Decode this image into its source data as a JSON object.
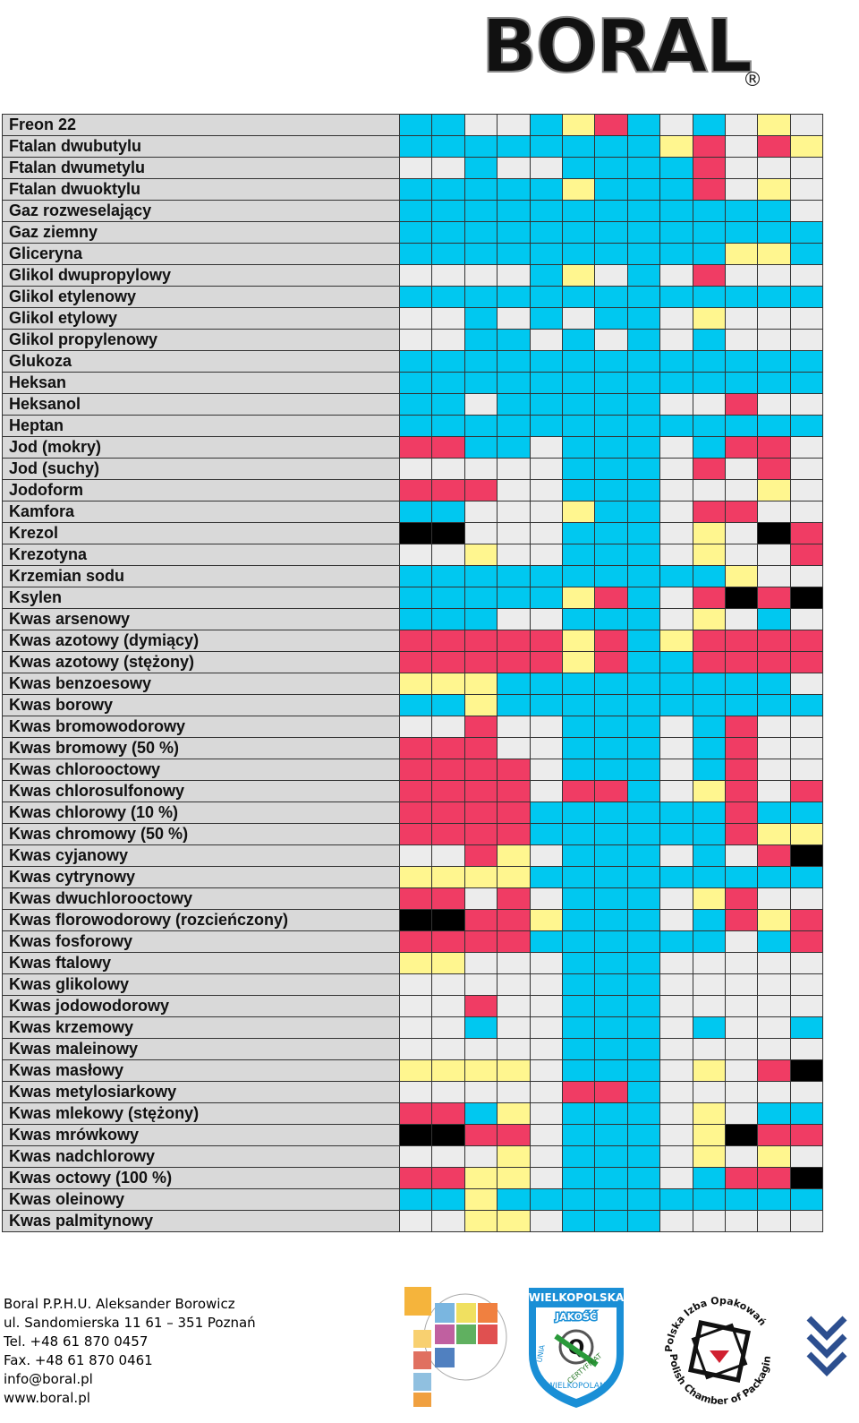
{
  "brand": {
    "logo_text": "BORAL",
    "registered_mark": "®"
  },
  "colors": {
    "C": "#00c8f0",
    "G": "#ececec",
    "Y": "#fff68f",
    "R": "#f03c64",
    "K": "#000000"
  },
  "rows": [
    {
      "name": "Freon 22",
      "cells": "CCGGCYRCGCGYG"
    },
    {
      "name": "Ftalan dwubutylu",
      "cells": "CCCCCCCCYRGRY"
    },
    {
      "name": "Ftalan dwumetylu",
      "cells": "GGCGGCCCCRGGG"
    },
    {
      "name": "Ftalan dwuoktylu",
      "cells": "CCCCCYCCCRGYG"
    },
    {
      "name": "Gaz rozweselający",
      "cells": "CCCCCCCCCCCCG"
    },
    {
      "name": "Gaz ziemny",
      "cells": "CCCCCCCCCCCCC"
    },
    {
      "name": "Gliceryna",
      "cells": "CCCCCCCCCCYYC"
    },
    {
      "name": "Glikol dwupropylowy",
      "cells": "GGGGCYGCGRGGG"
    },
    {
      "name": "Glikol etylenowy",
      "cells": "CCCCCCCCCCCCC"
    },
    {
      "name": "Glikol etylowy",
      "cells": "GGCGCGCCGYGGG"
    },
    {
      "name": "Glikol propylenowy",
      "cells": "GGCCGCGCGCGGG"
    },
    {
      "name": "Glukoza",
      "cells": "CCCCCCCCCCCCC"
    },
    {
      "name": "Heksan",
      "cells": "CCCCCCCCCCCCC"
    },
    {
      "name": "Heksanol",
      "cells": "CCGCCCCCGGRGG"
    },
    {
      "name": "Heptan",
      "cells": "CCCCCCCCCCCCC"
    },
    {
      "name": "Jod (mokry)",
      "cells": "RRCCGCCCGCRRG"
    },
    {
      "name": "Jod (suchy)",
      "cells": "GGGGGCCCGRGRG"
    },
    {
      "name": "Jodoform",
      "cells": "RRRGGCCCGGGYG"
    },
    {
      "name": "Kamfora",
      "cells": "CCGGGYCCGRRGG"
    },
    {
      "name": "Krezol",
      "cells": "KKGGGCCCGYGKR"
    },
    {
      "name": "Krezotyna",
      "cells": "GGYGGCCCGYGGR"
    },
    {
      "name": "Krzemian sodu",
      "cells": "CCCCCCCCCCYGG"
    },
    {
      "name": "Ksylen",
      "cells": "CCCCCYRCGRKRK"
    },
    {
      "name": "Kwas arsenowy",
      "cells": "CCCGGCCCGYGCG"
    },
    {
      "name": "Kwas azotowy (dymiący)",
      "cells": "RRRRRYRCYRRRR"
    },
    {
      "name": "Kwas azotowy (stężony)",
      "cells": "RRRRRYRCCRRRR"
    },
    {
      "name": "Kwas benzoesowy",
      "cells": "YYYCCCCCCCCCG"
    },
    {
      "name": "Kwas borowy",
      "cells": "CCYCCCCCCCCCC"
    },
    {
      "name": "Kwas bromowodorowy",
      "cells": "GGRGGCCCGCRGG"
    },
    {
      "name": "Kwas bromowy (50 %)",
      "cells": "RRRGGCCCGCRGG"
    },
    {
      "name": "Kwas chlorooctowy",
      "cells": "RRRRGCCCGCRGG"
    },
    {
      "name": "Kwas chlorosulfonowy",
      "cells": "RRRRGRRCGYRGR"
    },
    {
      "name": "Kwas chlorowy (10 %)",
      "cells": "RRRRCCCCCCRCC"
    },
    {
      "name": "Kwas chromowy (50 %)",
      "cells": "RRRRCCCCCCRYY"
    },
    {
      "name": "Kwas cyjanowy",
      "cells": "GGRYGCCCGCGRK"
    },
    {
      "name": "Kwas cytrynowy",
      "cells": "YYYYCCCCCCCCC"
    },
    {
      "name": "Kwas dwuchlorooctowy",
      "cells": "RRGRGCCCGYRGG"
    },
    {
      "name": "Kwas florowodorowy (rozcieńczony)",
      "cells": "KKRRYCCCGCRYR"
    },
    {
      "name": "Kwas fosforowy",
      "cells": "RRRRCCCCCCGCR"
    },
    {
      "name": "Kwas ftalowy",
      "cells": "YYGGGCCCGGGGG"
    },
    {
      "name": "Kwas glikolowy",
      "cells": "GGGGGCCCGGGGG"
    },
    {
      "name": "Kwas jodowodorowy",
      "cells": "GGRGGCCCGGGGG"
    },
    {
      "name": "Kwas krzemowy",
      "cells": "GGCGGCCCGCGGC"
    },
    {
      "name": "Kwas maleinowy",
      "cells": "GGGGGCCCGGGGG"
    },
    {
      "name": "Kwas masłowy",
      "cells": "YYYYGCCCGYGRK"
    },
    {
      "name": "Kwas metylosiarkowy",
      "cells": "GGGGGRRCGGGGG"
    },
    {
      "name": "Kwas mlekowy (stężony)",
      "cells": "RRCYGCCCGYGCC"
    },
    {
      "name": "Kwas mrówkowy",
      "cells": "KKRRGCCCGYKRR"
    },
    {
      "name": "Kwas nadchlorowy",
      "cells": "GGGYGCCCGYGYG"
    },
    {
      "name": "Kwas octowy (100 %)",
      "cells": "RRYYGCCCGCRRK"
    },
    {
      "name": "Kwas oleinowy",
      "cells": "CCYCCCCCCCCCC"
    },
    {
      "name": "Kwas palmitynowy",
      "cells": "GGYYGCCCGGGGG"
    }
  ],
  "footer": {
    "lines": [
      "Boral P.P.H.U. Aleksander Borowicz",
      "ul. Sandomierska 11 61 – 351 Poznań",
      "Tel. +48 61 870 0457",
      "Fax. +48 61 870 0461",
      "info@boral.pl",
      "www.boral.pl"
    ]
  },
  "badges": {
    "wielkopolska": {
      "top": "WIELKOPOLSKA",
      "mid": "JAKOŚĆ",
      "ribbon": "CERTYFIKAT",
      "bottom": "WIELKOPOLAN",
      "left": "UNIA",
      "mark": "Q"
    },
    "pio": {
      "top": "Polska Izba Opakowań",
      "bottom": "Polish Chamber of Packaging"
    },
    "nav_icon": "double-chevron-down-icon"
  }
}
